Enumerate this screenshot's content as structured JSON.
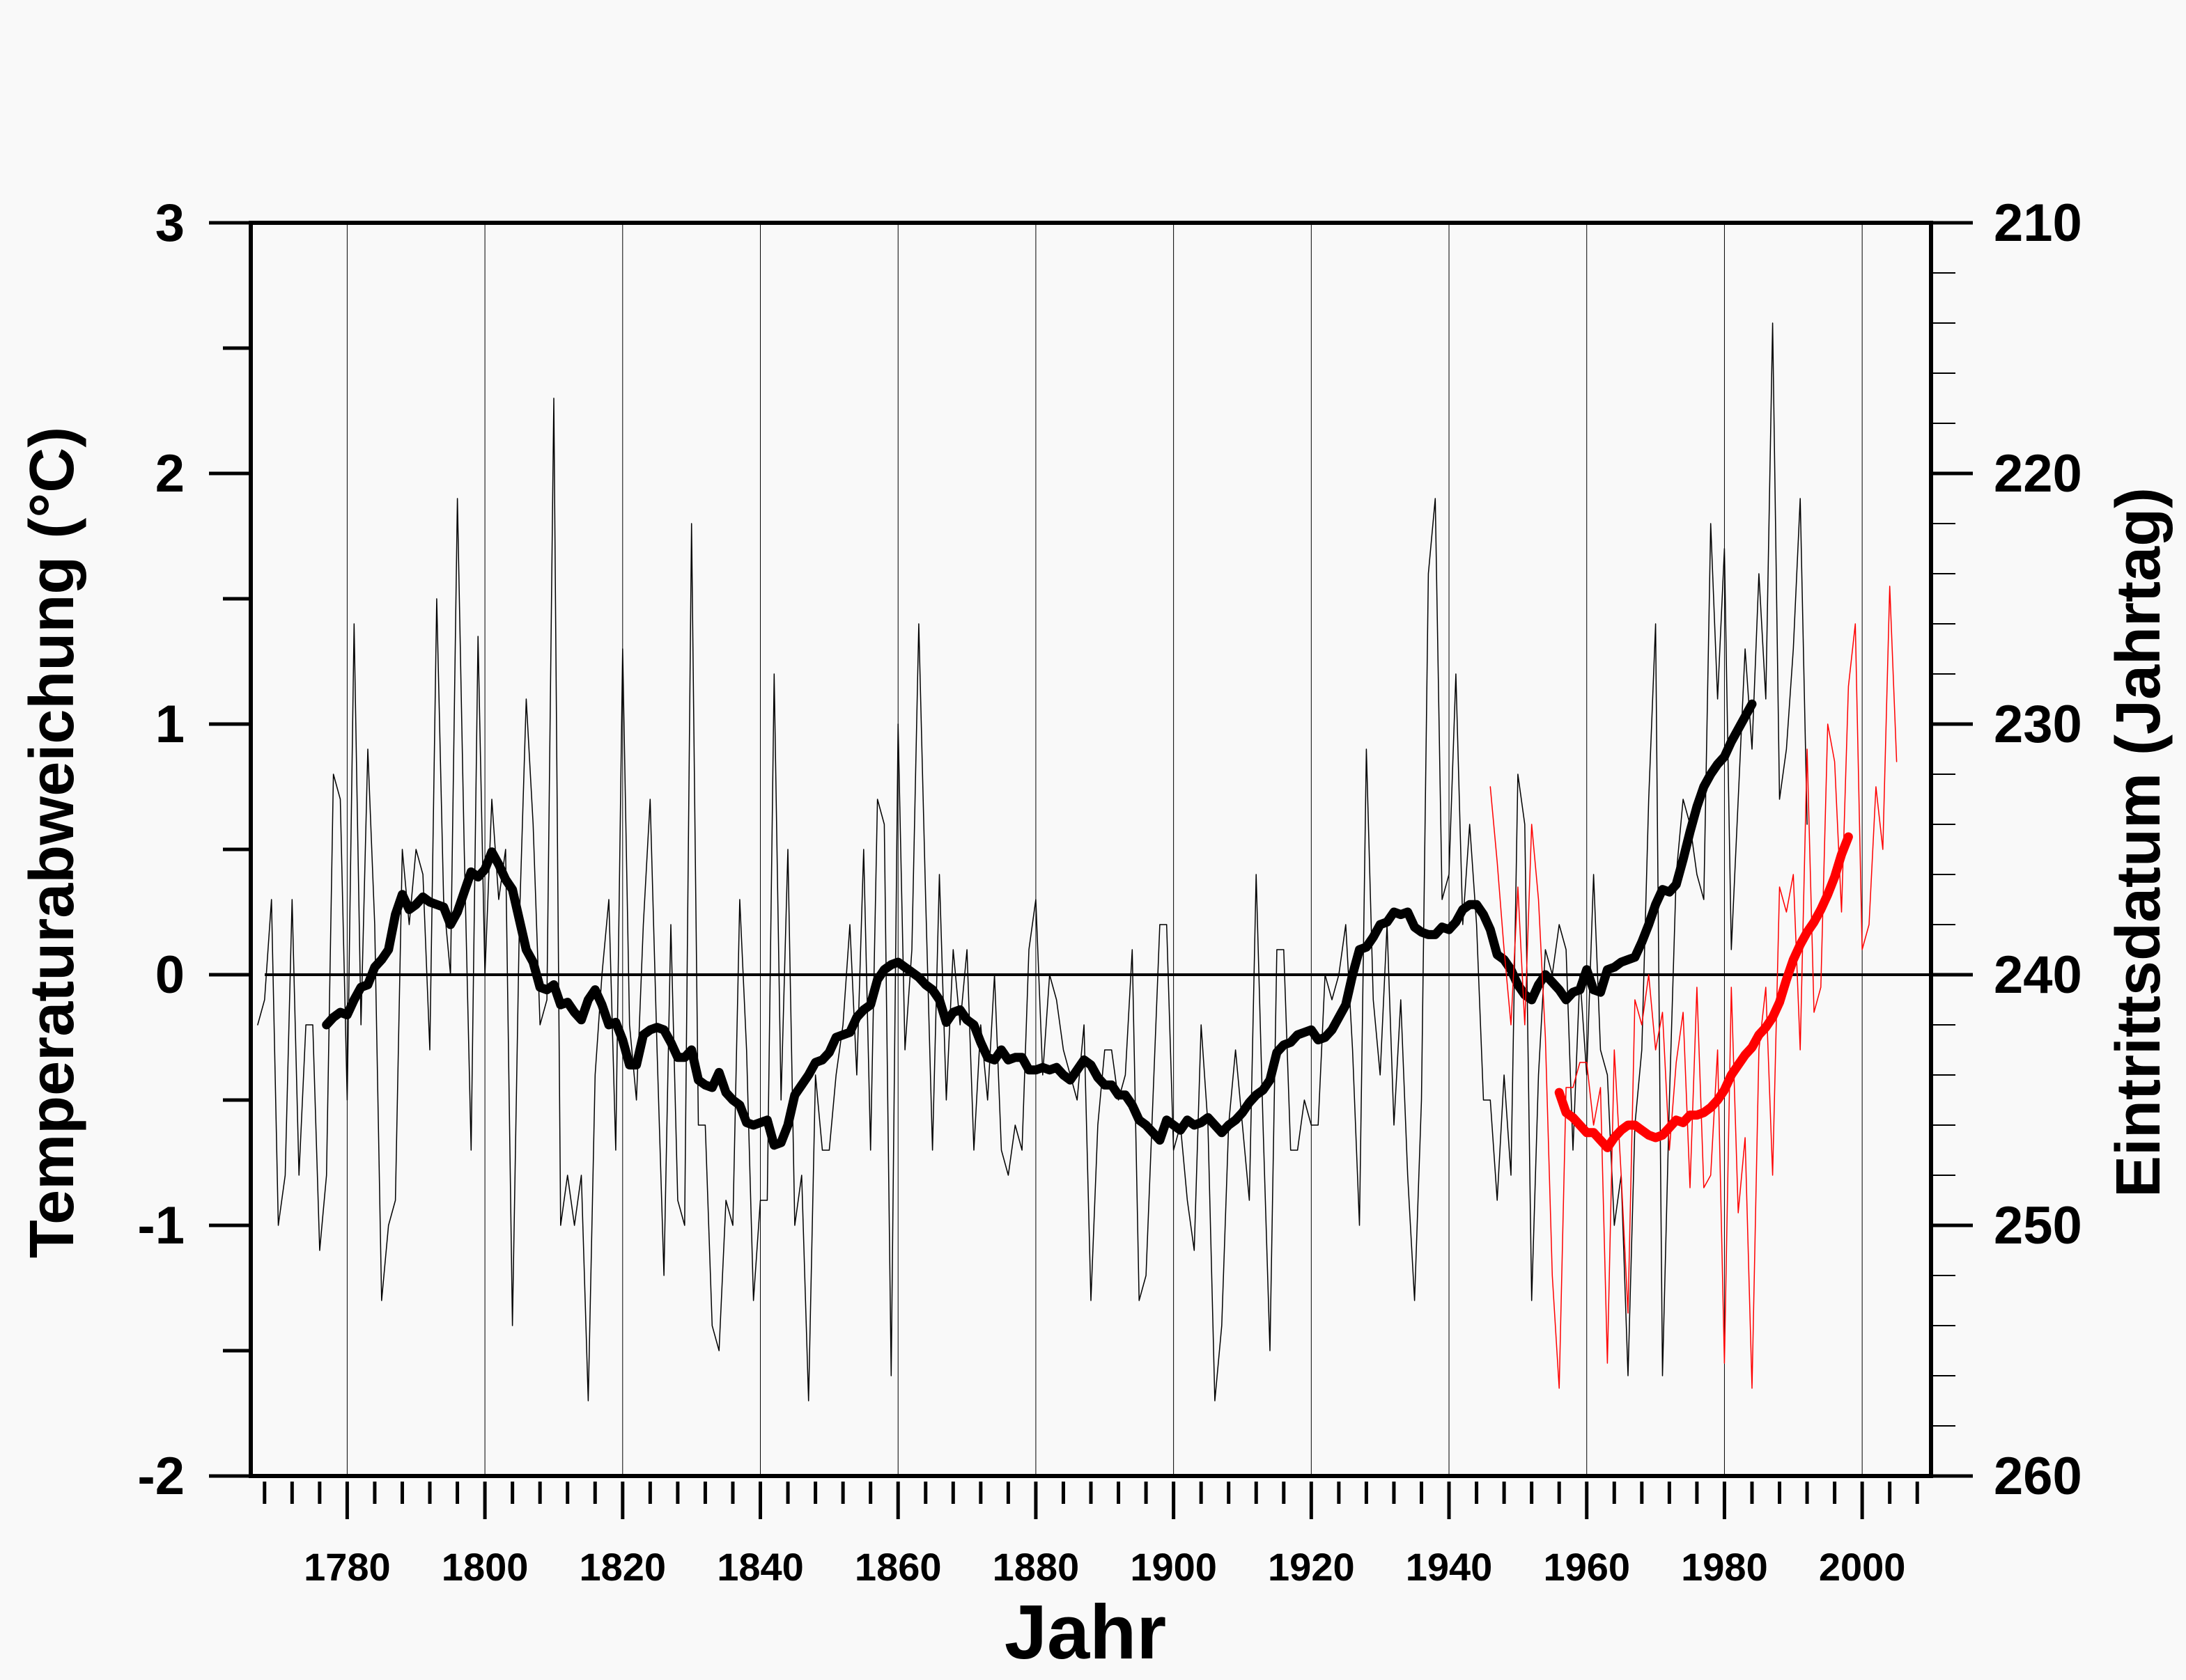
{
  "chart_data": {
    "type": "line",
    "title": "",
    "xlabel": "Jahr",
    "ylabel": "Temperaturabweichung (°C)",
    "y2label": "Eintrittsdatum (Jahrtag)",
    "xlim": [
      1766,
      2010
    ],
    "ylim": [
      -2,
      3
    ],
    "y2lim": [
      260,
      210
    ],
    "x_ticks": [
      1780,
      1800,
      1820,
      1840,
      1860,
      1880,
      1900,
      1920,
      1940,
      1960,
      1980,
      2000
    ],
    "y_ticks": [
      -2,
      -1,
      0,
      1,
      2,
      3
    ],
    "y2_ticks": [
      210,
      220,
      230,
      240,
      250,
      260
    ],
    "vertical_grid": true,
    "reference_line": 0,
    "colors": {
      "temperature": "#000000",
      "date": "#ff0000",
      "background": "#f9f9f9"
    },
    "series": [
      {
        "axis": "left",
        "style": "thin",
        "color": "#000000",
        "x_start": 1767,
        "values": [
          -0.2,
          -0.1,
          0.3,
          -1.0,
          -0.8,
          0.3,
          -0.8,
          -0.2,
          -0.2,
          -1.1,
          -0.8,
          0.8,
          0.7,
          -0.5,
          1.4,
          -0.2,
          0.9,
          0.2,
          -1.3,
          -1.0,
          -0.9,
          0.5,
          0.2,
          0.5,
          0.4,
          -0.3,
          1.5,
          0.3,
          0.0,
          1.9,
          0.5,
          -0.7,
          1.35,
          0.0,
          0.7,
          0.3,
          0.5,
          -1.4,
          0.2,
          1.1,
          0.6,
          -0.2,
          -0.1,
          2.3,
          -1.0,
          -0.8,
          -1.0,
          -0.8,
          -1.7,
          -0.4,
          0.0,
          0.3,
          -0.7,
          1.3,
          -0.2,
          -0.5,
          0.2,
          0.7,
          -0.3,
          -1.2,
          0.2,
          -0.9,
          -1.0,
          1.8,
          -0.6,
          -0.6,
          -1.4,
          -1.5,
          -0.9,
          -1.0,
          0.3,
          -0.3,
          -1.3,
          -0.9,
          -0.9,
          1.2,
          -0.5,
          0.5,
          -1.0,
          -0.8,
          -1.7,
          -0.4,
          -0.7,
          -0.7,
          -0.4,
          -0.2,
          0.2,
          -0.4,
          0.5,
          -0.7,
          0.7,
          0.6,
          -1.6,
          1.0,
          -0.3,
          0.1,
          1.4,
          0.3,
          -0.7,
          0.4,
          -0.5,
          0.1,
          -0.2,
          0.1,
          -0.7,
          -0.2,
          -0.5,
          0.0,
          -0.7,
          -0.8,
          -0.6,
          -0.7,
          0.1,
          0.3,
          -0.4,
          0.0,
          -0.1,
          -0.3,
          -0.4,
          -0.5,
          -0.2,
          -1.3,
          -0.6,
          -0.3,
          -0.3,
          -0.5,
          -0.4,
          0.1,
          -1.3,
          -1.2,
          -0.5,
          0.2,
          0.2,
          -0.7,
          -0.6,
          -0.9,
          -1.1,
          -0.2,
          -0.6,
          -1.7,
          -1.4,
          -0.6,
          -0.3,
          -0.6,
          -0.9,
          0.4,
          -0.6,
          -1.5,
          0.1,
          0.1,
          -0.7,
          -0.7,
          -0.5,
          -0.6,
          -0.6,
          0.0,
          -0.1,
          0.0,
          0.2,
          -0.3,
          -1.0,
          0.9,
          -0.1,
          -0.4,
          0.2,
          -0.6,
          -0.1,
          -0.8,
          -1.3,
          -0.5,
          1.6,
          1.9,
          0.3,
          0.4,
          1.2,
          0.2,
          0.6,
          0.2,
          -0.5,
          -0.5,
          -0.9,
          -0.4,
          -0.8,
          0.8,
          0.6,
          -1.3,
          -0.4,
          0.1,
          0.0,
          0.2,
          0.1,
          -0.7,
          0.0,
          -0.4,
          0.4,
          -0.3,
          -0.4,
          -1.0,
          -0.8,
          -1.6,
          -0.6,
          -0.3,
          0.7,
          1.4,
          -1.6,
          -0.5,
          0.4,
          0.7,
          0.6,
          0.4,
          0.3,
          1.8,
          1.1,
          1.7,
          0.1,
          0.7,
          1.3,
          0.9,
          1.6,
          1.1,
          2.6,
          0.7,
          0.9,
          1.3,
          1.9,
          0.6
        ]
      },
      {
        "axis": "left",
        "style": "thick",
        "color": "#000000",
        "x_start": 1777,
        "values": [
          -0.2,
          -0.17,
          -0.15,
          -0.16,
          -0.1,
          -0.05,
          -0.04,
          0.03,
          0.06,
          0.1,
          0.24,
          0.32,
          0.26,
          0.28,
          0.31,
          0.29,
          0.28,
          0.27,
          0.2,
          0.25,
          0.33,
          0.41,
          0.39,
          0.42,
          0.49,
          0.44,
          0.38,
          0.34,
          0.22,
          0.1,
          0.05,
          -0.05,
          -0.06,
          -0.04,
          -0.12,
          -0.11,
          -0.15,
          -0.18,
          -0.1,
          -0.06,
          -0.12,
          -0.2,
          -0.19,
          -0.26,
          -0.36,
          -0.36,
          -0.24,
          -0.22,
          -0.21,
          -0.22,
          -0.27,
          -0.33,
          -0.33,
          -0.3,
          -0.42,
          -0.44,
          -0.45,
          -0.39,
          -0.47,
          -0.5,
          -0.52,
          -0.59,
          -0.6,
          -0.59,
          -0.58,
          -0.68,
          -0.67,
          -0.6,
          -0.48,
          -0.44,
          -0.4,
          -0.35,
          -0.34,
          -0.31,
          -0.25,
          -0.24,
          -0.23,
          -0.17,
          -0.14,
          -0.12,
          -0.02,
          0.02,
          0.04,
          0.05,
          0.03,
          0.01,
          -0.01,
          -0.04,
          -0.06,
          -0.1,
          -0.19,
          -0.15,
          -0.14,
          -0.18,
          -0.2,
          -0.27,
          -0.33,
          -0.34,
          -0.3,
          -0.34,
          -0.33,
          -0.33,
          -0.38,
          -0.38,
          -0.37,
          -0.38,
          -0.37,
          -0.4,
          -0.42,
          -0.38,
          -0.34,
          -0.36,
          -0.41,
          -0.44,
          -0.44,
          -0.48,
          -0.48,
          -0.52,
          -0.58,
          -0.6,
          -0.63,
          -0.66,
          -0.58,
          -0.6,
          -0.62,
          -0.58,
          -0.6,
          -0.59,
          -0.57,
          -0.6,
          -0.63,
          -0.6,
          -0.58,
          -0.55,
          -0.51,
          -0.48,
          -0.46,
          -0.42,
          -0.31,
          -0.28,
          -0.27,
          -0.24,
          -0.23,
          -0.22,
          -0.26,
          -0.25,
          -0.22,
          -0.17,
          -0.12,
          0.0,
          0.1,
          0.11,
          0.15,
          0.2,
          0.21,
          0.25,
          0.24,
          0.25,
          0.19,
          0.17,
          0.16,
          0.16,
          0.19,
          0.18,
          0.21,
          0.26,
          0.28,
          0.28,
          0.24,
          0.18,
          0.08,
          0.06,
          0.02,
          -0.04,
          -0.08,
          -0.1,
          -0.04,
          0.0,
          -0.03,
          -0.06,
          -0.1,
          -0.07,
          -0.06,
          0.02,
          -0.06,
          -0.07,
          0.02,
          0.03,
          0.05,
          0.06,
          0.07,
          0.13,
          0.2,
          0.28,
          0.34,
          0.33,
          0.36,
          0.46,
          0.57,
          0.67,
          0.75,
          0.8,
          0.84,
          0.87,
          0.93,
          0.98,
          1.03,
          1.08
        ]
      },
      {
        "axis": "right",
        "style": "thin",
        "color": "#ff0000",
        "x_start": 1946,
        "values": [
          232.5,
          235.5,
          239,
          242,
          236.5,
          242,
          234,
          237,
          242.5,
          252,
          256.5,
          244.5,
          244.5,
          243.5,
          243.5,
          246,
          244.5,
          255.5,
          243,
          248,
          253.5,
          241,
          242,
          240,
          243,
          241.5,
          247,
          243.5,
          241.5,
          248.5,
          240.5,
          248.5,
          248,
          243,
          255.5,
          240.5,
          249.5,
          246.5,
          256.5,
          243,
          240.5,
          248,
          236.5,
          237.5,
          236,
          243,
          231,
          241.5,
          240.5,
          230,
          231.5,
          237.5,
          228.5,
          226,
          239,
          238,
          232.5,
          235,
          224.5,
          231.5
        ]
      },
      {
        "axis": "right",
        "style": "thick",
        "color": "#ff0000",
        "x_start": 1956,
        "values": [
          244.7,
          245.5,
          245.7,
          246,
          246.3,
          246.3,
          246.6,
          246.9,
          246.5,
          246.2,
          246.0,
          246.0,
          246.2,
          246.4,
          246.5,
          246.4,
          246.1,
          245.8,
          245.9,
          245.6,
          245.6,
          245.5,
          245.3,
          245.0,
          244.6,
          244.0,
          243.6,
          243.2,
          242.9,
          242.4,
          242.1,
          241.7,
          241.1,
          240.2,
          239.4,
          238.8,
          238.3,
          237.9,
          237.4,
          236.8,
          236.1,
          235.2,
          234.5
        ]
      }
    ]
  }
}
